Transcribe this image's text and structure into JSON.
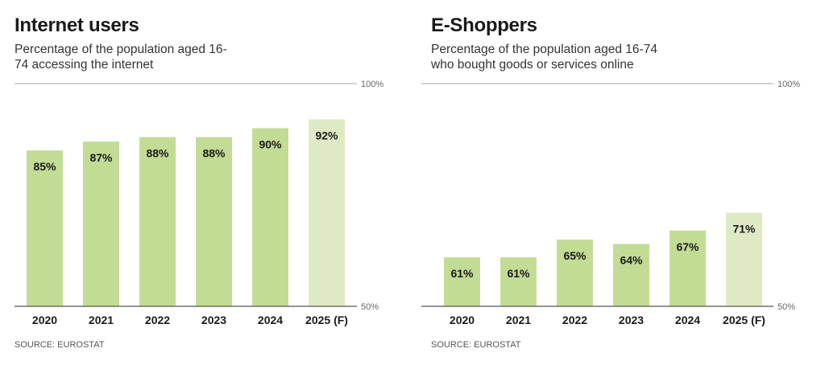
{
  "colors": {
    "bar": "#c3dc95",
    "forecast_bar": "#dfeac5",
    "axis": "#555555",
    "gridline": "#aaaaaa"
  },
  "source": "SOURCE: EUROSTAT",
  "chart_data": [
    {
      "type": "bar",
      "title": "Internet users",
      "subtitle": "Percentage of the population aged 16-74 accessing the internet",
      "categories": [
        "2020",
        "2021",
        "2022",
        "2023",
        "2024",
        "2025 (F)"
      ],
      "values": [
        85,
        87,
        88,
        88,
        90,
        92
      ],
      "value_labels": [
        "85%",
        "87%",
        "88%",
        "88%",
        "90%",
        "92%"
      ],
      "forecast": [
        false,
        false,
        false,
        false,
        false,
        true
      ],
      "ylim": [
        50,
        100
      ],
      "yticks": [
        "50%",
        "100%"
      ],
      "source": "SOURCE: EUROSTAT"
    },
    {
      "type": "bar",
      "title": "E-Shoppers",
      "subtitle": "Percentage of the population aged 16-74 who bought goods or services online",
      "categories": [
        "2020",
        "2021",
        "2022",
        "2023",
        "2024",
        "2025 (F)"
      ],
      "values": [
        61,
        61,
        65,
        64,
        67,
        71
      ],
      "value_labels": [
        "61%",
        "61%",
        "65%",
        "64%",
        "67%",
        "71%"
      ],
      "forecast": [
        false,
        false,
        false,
        false,
        false,
        true
      ],
      "ylim": [
        50,
        100
      ],
      "yticks": [
        "50%",
        "100%"
      ],
      "source": "SOURCE: EUROSTAT"
    }
  ]
}
